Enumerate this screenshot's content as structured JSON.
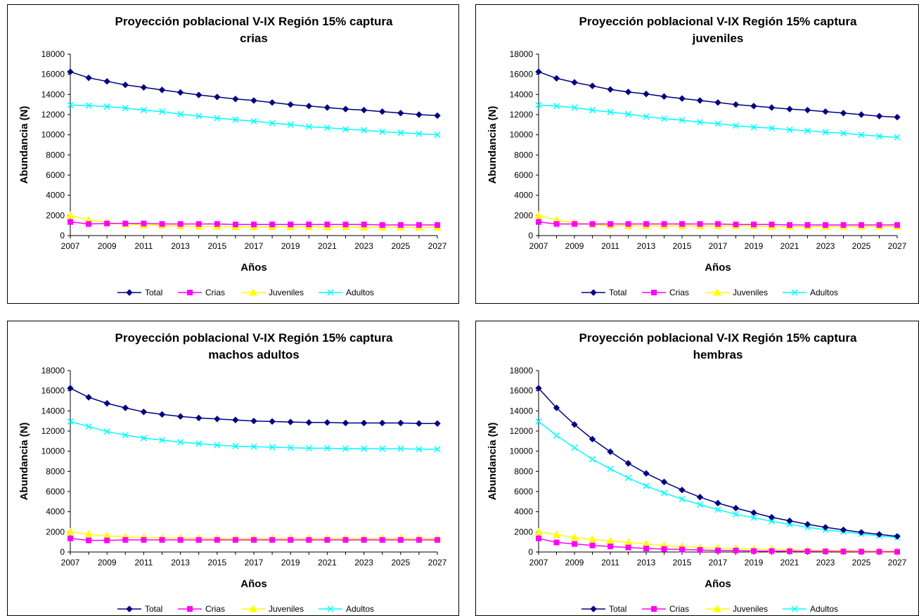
{
  "chart_data": [
    {
      "type": "line",
      "title": "Proyección poblacional V-IX Región 15% captura",
      "subtitle": "crias",
      "xlabel": "Años",
      "ylabel": "Abundancia (N)",
      "ylim": [
        0,
        18000
      ],
      "yticks": [
        "0",
        "2000",
        "4000",
        "6000",
        "8000",
        "10000",
        "12000",
        "14000",
        "16000",
        "18000"
      ],
      "xticks": [
        "2007",
        "2009",
        "2011",
        "2013",
        "2015",
        "2017",
        "2019",
        "2021",
        "2023",
        "2025",
        "2027"
      ],
      "x": [
        2007,
        2008,
        2009,
        2010,
        2011,
        2012,
        2013,
        2014,
        2015,
        2016,
        2017,
        2018,
        2019,
        2020,
        2021,
        2022,
        2023,
        2024,
        2025,
        2026,
        2027
      ],
      "grid": false,
      "legend": "bottom",
      "series": [
        {
          "name": "Total",
          "color": "#000080",
          "marker": "diamond",
          "values": [
            16250,
            15650,
            15300,
            14950,
            14700,
            14450,
            14200,
            13950,
            13750,
            13550,
            13400,
            13200,
            13000,
            12850,
            12700,
            12550,
            12450,
            12300,
            12150,
            12000,
            11900
          ]
        },
        {
          "name": "Crias",
          "color": "#ff00ff",
          "marker": "square",
          "values": [
            1350,
            1150,
            1200,
            1200,
            1200,
            1150,
            1150,
            1150,
            1150,
            1100,
            1100,
            1100,
            1100,
            1100,
            1100,
            1100,
            1100,
            1050,
            1050,
            1050,
            1050
          ]
        },
        {
          "name": "Juveniles",
          "color": "#ffff00",
          "marker": "triangle",
          "values": [
            2000,
            1550,
            1300,
            1150,
            1050,
            1000,
            950,
            900,
            900,
            850,
            850,
            850,
            850,
            850,
            850,
            850,
            800,
            800,
            800,
            800,
            800
          ]
        },
        {
          "name": "Adultos",
          "color": "#00ffff",
          "marker": "x",
          "values": [
            12950,
            12900,
            12800,
            12650,
            12450,
            12300,
            12050,
            11850,
            11650,
            11500,
            11350,
            11150,
            11000,
            10800,
            10700,
            10550,
            10450,
            10300,
            10200,
            10100,
            10000
          ]
        }
      ]
    },
    {
      "type": "line",
      "title": "Proyección poblacional V-IX Región 15% captura",
      "subtitle": "juveniles",
      "xlabel": "Años",
      "ylabel": "Abundancia (N)",
      "ylim": [
        0,
        18000
      ],
      "yticks": [
        "0",
        "2000",
        "4000",
        "6000",
        "8000",
        "10000",
        "12000",
        "14000",
        "16000",
        "18000"
      ],
      "xticks": [
        "2007",
        "2009",
        "2011",
        "2013",
        "2015",
        "2017",
        "2019",
        "2021",
        "2023",
        "2025",
        "2027"
      ],
      "x": [
        2007,
        2008,
        2009,
        2010,
        2011,
        2012,
        2013,
        2014,
        2015,
        2016,
        2017,
        2018,
        2019,
        2020,
        2021,
        2022,
        2023,
        2024,
        2025,
        2026,
        2027
      ],
      "grid": false,
      "legend": "bottom",
      "series": [
        {
          "name": "Total",
          "color": "#000080",
          "marker": "diamond",
          "values": [
            16250,
            15600,
            15200,
            14850,
            14500,
            14250,
            14050,
            13800,
            13600,
            13400,
            13200,
            13000,
            12850,
            12700,
            12550,
            12450,
            12300,
            12150,
            12000,
            11850,
            11750
          ]
        },
        {
          "name": "Crias",
          "color": "#ff00ff",
          "marker": "square",
          "values": [
            1350,
            1150,
            1150,
            1150,
            1150,
            1150,
            1150,
            1150,
            1150,
            1150,
            1150,
            1100,
            1100,
            1100,
            1050,
            1050,
            1050,
            1050,
            1050,
            1050,
            1050
          ]
        },
        {
          "name": "Juveniles",
          "color": "#ffff00",
          "marker": "triangle",
          "values": [
            2000,
            1550,
            1250,
            1100,
            1000,
            950,
            950,
            950,
            950,
            950,
            950,
            950,
            950,
            900,
            900,
            900,
            900,
            900,
            900,
            900,
            900
          ]
        },
        {
          "name": "Adultos",
          "color": "#00ffff",
          "marker": "x",
          "values": [
            12950,
            12850,
            12700,
            12450,
            12250,
            12050,
            11800,
            11600,
            11450,
            11250,
            11100,
            10900,
            10750,
            10650,
            10500,
            10400,
            10250,
            10150,
            10000,
            9850,
            9750
          ]
        }
      ]
    },
    {
      "type": "line",
      "title": "Proyección poblacional V-IX Región 15% captura",
      "subtitle": "machos adultos",
      "xlabel": "Años",
      "ylabel": "Abundancia (N)",
      "ylim": [
        0,
        18000
      ],
      "yticks": [
        "0",
        "2000",
        "4000",
        "6000",
        "8000",
        "10000",
        "12000",
        "14000",
        "16000",
        "18000"
      ],
      "xticks": [
        "2007",
        "2009",
        "2011",
        "2013",
        "2015",
        "2017",
        "2019",
        "2021",
        "2023",
        "2025",
        "2027"
      ],
      "x": [
        2007,
        2008,
        2009,
        2010,
        2011,
        2012,
        2013,
        2014,
        2015,
        2016,
        2017,
        2018,
        2019,
        2020,
        2021,
        2022,
        2023,
        2024,
        2025,
        2026,
        2027
      ],
      "grid": false,
      "legend": "bottom",
      "series": [
        {
          "name": "Total",
          "color": "#000080",
          "marker": "diamond",
          "values": [
            16250,
            15350,
            14750,
            14300,
            13900,
            13650,
            13450,
            13300,
            13200,
            13100,
            13000,
            12950,
            12900,
            12850,
            12850,
            12800,
            12800,
            12800,
            12800,
            12750,
            12750
          ]
        },
        {
          "name": "Crias",
          "color": "#ff00ff",
          "marker": "square",
          "values": [
            1350,
            1150,
            1150,
            1200,
            1200,
            1200,
            1200,
            1200,
            1200,
            1200,
            1200,
            1200,
            1200,
            1200,
            1200,
            1200,
            1200,
            1200,
            1200,
            1200,
            1200
          ]
        },
        {
          "name": "Juveniles",
          "color": "#ffff00",
          "marker": "triangle",
          "values": [
            2000,
            1750,
            1600,
            1500,
            1450,
            1400,
            1400,
            1350,
            1350,
            1350,
            1350,
            1350,
            1350,
            1350,
            1350,
            1350,
            1350,
            1350,
            1350,
            1350,
            1350
          ]
        },
        {
          "name": "Adultos",
          "color": "#00ffff",
          "marker": "x",
          "values": [
            12950,
            12450,
            11950,
            11600,
            11300,
            11100,
            10900,
            10750,
            10600,
            10500,
            10450,
            10400,
            10350,
            10300,
            10300,
            10250,
            10250,
            10250,
            10250,
            10200,
            10200
          ]
        }
      ]
    },
    {
      "type": "line",
      "title": "Proyección poblacional V-IX Región 15% captura",
      "subtitle": "hembras",
      "xlabel": "Años",
      "ylabel": "Abundancia (N)",
      "ylim": [
        0,
        18000
      ],
      "yticks": [
        "0",
        "2000",
        "4000",
        "6000",
        "8000",
        "10000",
        "12000",
        "14000",
        "16000",
        "18000"
      ],
      "xticks": [
        "2007",
        "2009",
        "2011",
        "2013",
        "2015",
        "2017",
        "2019",
        "2021",
        "2023",
        "2025",
        "2027"
      ],
      "x": [
        2007,
        2008,
        2009,
        2010,
        2011,
        2012,
        2013,
        2014,
        2015,
        2016,
        2017,
        2018,
        2019,
        2020,
        2021,
        2022,
        2023,
        2024,
        2025,
        2026,
        2027
      ],
      "grid": false,
      "legend": "bottom",
      "series": [
        {
          "name": "Total",
          "color": "#000080",
          "marker": "diamond",
          "values": [
            16250,
            14300,
            12650,
            11200,
            9950,
            8800,
            7800,
            6950,
            6150,
            5450,
            4850,
            4350,
            3900,
            3450,
            3100,
            2750,
            2450,
            2200,
            1950,
            1750,
            1550
          ]
        },
        {
          "name": "Crias",
          "color": "#ff00ff",
          "marker": "square",
          "values": [
            1350,
            950,
            800,
            650,
            550,
            450,
            350,
            300,
            250,
            200,
            150,
            150,
            100,
            100,
            80,
            70,
            60,
            50,
            40,
            30,
            25
          ]
        },
        {
          "name": "Juveniles",
          "color": "#ffff00",
          "marker": "triangle",
          "values": [
            2000,
            1700,
            1450,
            1250,
            1100,
            950,
            800,
            650,
            550,
            450,
            400,
            350,
            300,
            250,
            200,
            180,
            160,
            140,
            120,
            100,
            90
          ]
        },
        {
          "name": "Adultos",
          "color": "#00ffff",
          "marker": "x",
          "values": [
            12950,
            11550,
            10350,
            9200,
            8250,
            7350,
            6550,
            5850,
            5250,
            4700,
            4200,
            3750,
            3400,
            3050,
            2750,
            2450,
            2200,
            2000,
            1800,
            1600,
            1450
          ]
        }
      ]
    }
  ]
}
